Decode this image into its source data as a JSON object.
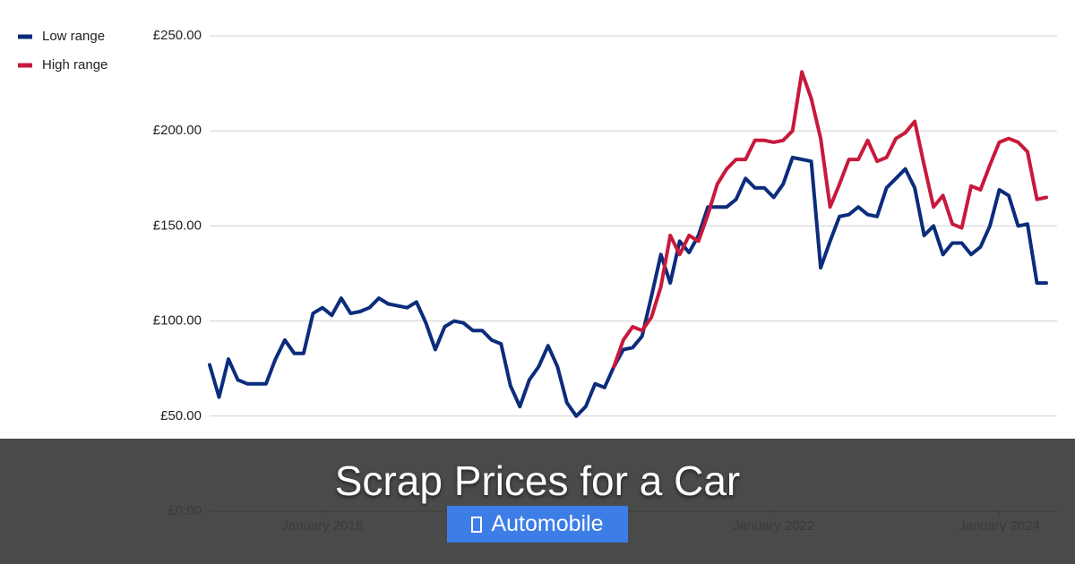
{
  "chart_data": {
    "type": "line",
    "x": [
      "2017-01",
      "2017-02",
      "2017-03",
      "2017-04",
      "2017-05",
      "2017-06",
      "2017-07",
      "2017-08",
      "2017-09",
      "2017-10",
      "2017-11",
      "2017-12",
      "2018-01",
      "2018-02",
      "2018-03",
      "2018-04",
      "2018-05",
      "2018-06",
      "2018-07",
      "2018-08",
      "2018-09",
      "2018-10",
      "2018-11",
      "2018-12",
      "2019-01",
      "2019-02",
      "2019-03",
      "2019-04",
      "2019-05",
      "2019-06",
      "2019-07",
      "2019-08",
      "2019-09",
      "2019-10",
      "2019-11",
      "2019-12",
      "2020-01",
      "2020-02",
      "2020-03",
      "2020-04",
      "2020-05",
      "2020-06",
      "2020-07",
      "2020-08",
      "2020-09",
      "2020-10",
      "2020-11",
      "2020-12",
      "2021-01",
      "2021-02",
      "2021-03",
      "2021-04",
      "2021-05",
      "2021-06",
      "2021-07",
      "2021-08",
      "2021-09",
      "2021-10",
      "2021-11",
      "2021-12",
      "2022-01",
      "2022-02",
      "2022-03",
      "2022-04",
      "2022-05",
      "2022-06",
      "2022-07",
      "2022-08",
      "2022-09",
      "2022-10",
      "2022-11",
      "2022-12",
      "2023-01",
      "2023-02",
      "2023-03",
      "2023-04",
      "2023-05",
      "2023-06",
      "2023-07",
      "2023-08",
      "2023-09",
      "2023-10",
      "2023-11",
      "2023-12",
      "2024-01",
      "2024-02",
      "2024-03",
      "2024-04",
      "2024-05",
      "2024-06"
    ],
    "series": [
      {
        "name": "Low range",
        "color": "#0c2c7c",
        "values": [
          77,
          60,
          80,
          69,
          67,
          67,
          67,
          80,
          90,
          83,
          83,
          104,
          107,
          103,
          112,
          104,
          105,
          107,
          112,
          109,
          108,
          107,
          110,
          99,
          85,
          97,
          100,
          99,
          95,
          95,
          90,
          88,
          66,
          55,
          69,
          76,
          87,
          76,
          57,
          50,
          55,
          67,
          65,
          76,
          85,
          86,
          92,
          113,
          135,
          120,
          142,
          136,
          145,
          160,
          160,
          160,
          164,
          175,
          170,
          170,
          165,
          172,
          186,
          185,
          184,
          128,
          142,
          155,
          156,
          160,
          156,
          155,
          170,
          175,
          180,
          170,
          145,
          150,
          135,
          141,
          141,
          135,
          139,
          150,
          169,
          166,
          150,
          151,
          120,
          120
        ]
      },
      {
        "name": "High range",
        "color": "#c8193c",
        "values": [
          null,
          null,
          null,
          null,
          null,
          null,
          null,
          null,
          null,
          null,
          null,
          null,
          null,
          null,
          null,
          null,
          null,
          null,
          null,
          null,
          null,
          null,
          null,
          null,
          null,
          null,
          null,
          null,
          null,
          null,
          null,
          null,
          null,
          null,
          null,
          null,
          null,
          null,
          null,
          null,
          null,
          null,
          null,
          76,
          90,
          97,
          95,
          102,
          118,
          145,
          135,
          145,
          142,
          156,
          172,
          180,
          185,
          185,
          195,
          195,
          194,
          195,
          200,
          231,
          217,
          196,
          160,
          172,
          185,
          185,
          195,
          184,
          186,
          196,
          199,
          205,
          182,
          160,
          166,
          151,
          149,
          171,
          169,
          182,
          194,
          196,
          194,
          189,
          164,
          165
        ]
      }
    ],
    "ylim": [
      0,
      250
    ],
    "yticks": [
      {
        "value": 0,
        "label": "£0.00"
      },
      {
        "value": 50,
        "label": "£50.00"
      },
      {
        "value": 100,
        "label": "£100.00"
      },
      {
        "value": 150,
        "label": "£150.00"
      },
      {
        "value": 200,
        "label": "£200.00"
      },
      {
        "value": 250,
        "label": "£250.00"
      }
    ],
    "xticks": [
      {
        "value": "2018-01",
        "label": "January 2018"
      },
      {
        "value": "2022-01",
        "label": "January 2022"
      },
      {
        "value": "2024-01",
        "label": "January 2024"
      }
    ],
    "grid": true,
    "legend": "top-left"
  },
  "overlay": {
    "title": "Scrap Prices for a Car",
    "tag": "Automobile"
  }
}
